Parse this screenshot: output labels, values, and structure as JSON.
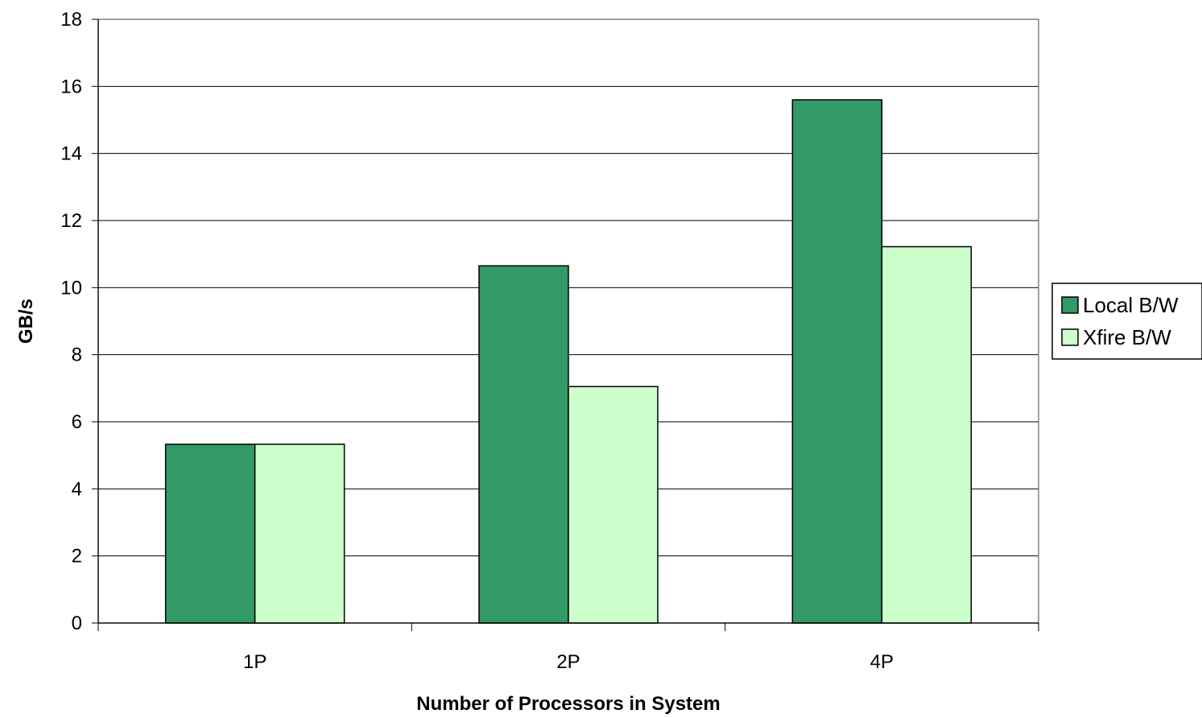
{
  "chart_data": {
    "type": "bar",
    "categories": [
      "1P",
      "2P",
      "4P"
    ],
    "series": [
      {
        "name": "Local B/W",
        "values": [
          5.33,
          10.65,
          15.6
        ],
        "color": "#339966"
      },
      {
        "name": "Xfire B/W",
        "values": [
          5.33,
          7.05,
          11.22
        ],
        "color": "#CCFFCC"
      }
    ],
    "xlabel": "Number of Processors in System",
    "ylabel": "GB/s",
    "ylim": [
      0,
      18
    ],
    "yticks": [
      "0",
      "2",
      "4",
      "6",
      "8",
      "10",
      "12",
      "14",
      "16",
      "18"
    ],
    "grid": true,
    "legend_position": "right"
  }
}
